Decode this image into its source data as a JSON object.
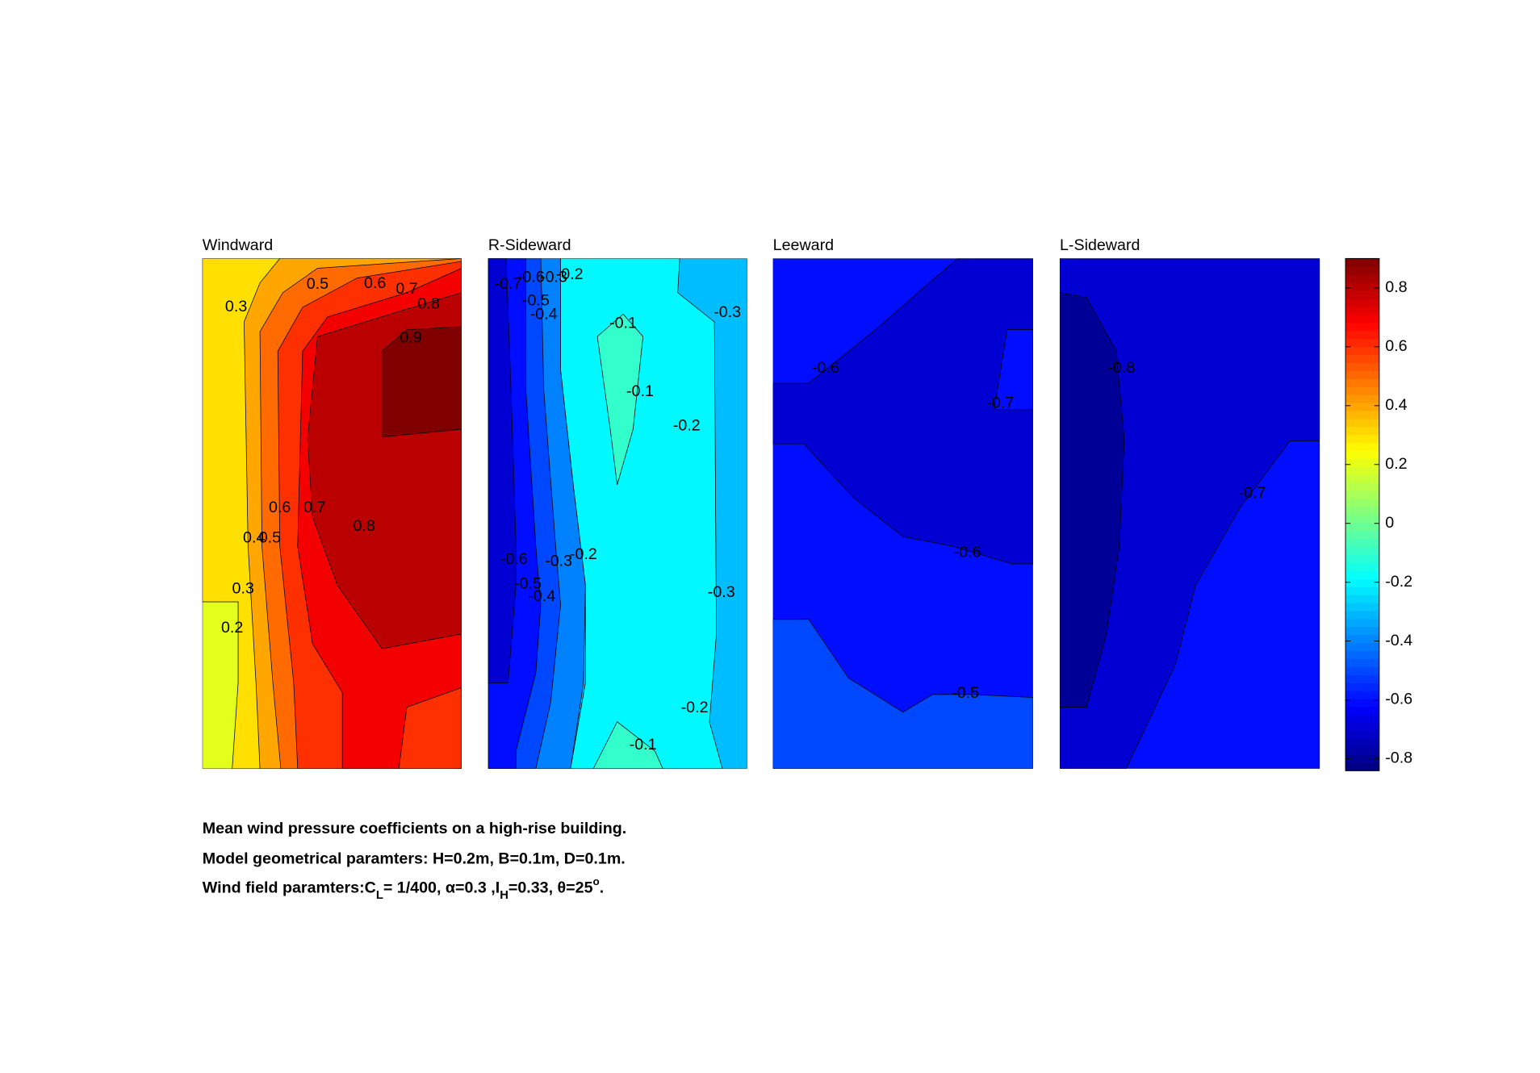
{
  "chart_data": [
    {
      "type": "contourf",
      "title": "Windward",
      "levels": [
        0.2,
        0.3,
        0.4,
        0.5,
        0.6,
        0.7,
        0.8,
        0.9
      ],
      "contour_labels": [
        0.3,
        0.5,
        0.6,
        0.7,
        0.8,
        0.9,
        0.6,
        0.7,
        0.8,
        0.4,
        0.5,
        0.3,
        0.2
      ]
    },
    {
      "type": "contourf",
      "title": "R-Sideward",
      "levels": [
        -0.7,
        -0.6,
        -0.5,
        -0.4,
        -0.3,
        -0.2,
        -0.1
      ],
      "contour_labels": [
        -0.7,
        -0.6,
        -0.3,
        -0.2,
        -0.5,
        -0.4,
        -0.1,
        -0.3,
        -0.1,
        -0.2,
        -0.6,
        -0.3,
        -0.2,
        -0.5,
        -0.4,
        -0.3,
        -0.2,
        -0.1
      ]
    },
    {
      "type": "contourf",
      "title": "Leeward",
      "levels": [
        -0.7,
        -0.6,
        -0.5
      ],
      "contour_labels": [
        -0.6,
        -0.7,
        -0.6,
        -0.5
      ]
    },
    {
      "type": "contourf",
      "title": "L-Sideward",
      "levels": [
        -0.8,
        -0.7,
        -0.6
      ],
      "contour_labels": [
        -0.8,
        -0.7
      ]
    }
  ],
  "colorbar": {
    "colormap": "jet",
    "clim": [
      -0.84,
      0.9
    ],
    "ticks": [
      0.8,
      0.6,
      0.4,
      0.2,
      0,
      -0.2,
      -0.4,
      -0.6,
      -0.8
    ]
  },
  "caption": {
    "line1": "Mean wind pressure coefficients on a high-rise building.",
    "line2": "Model geometrical paramters: H=0.2m, B=0.1m, D=0.1m.",
    "line3": [
      "Wind field paramters:C",
      "L",
      "= 1/400, α=0.3 ,I",
      "H",
      "=0.33, θ=25",
      "o",
      "."
    ]
  }
}
